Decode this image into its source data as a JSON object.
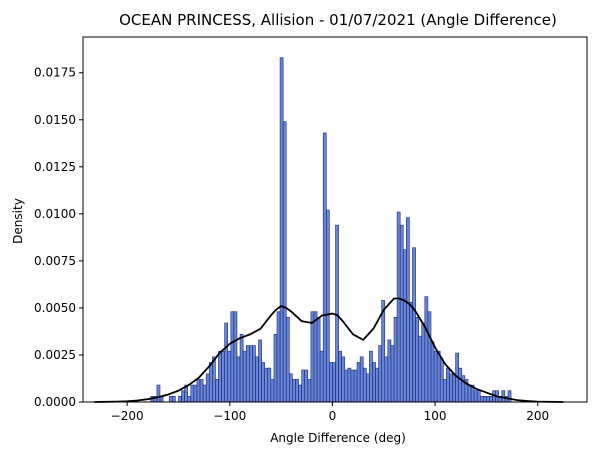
{
  "chart_data": {
    "type": "bar",
    "title": "OCEAN PRINCESS, Allision - 01/07/2021 (Angle Difference)",
    "xlabel": "Angle Difference (deg)",
    "ylabel": "Density",
    "xlim": [
      -243,
      248
    ],
    "ylim": [
      0,
      0.0194
    ],
    "xticks": [
      -200,
      -100,
      0,
      100,
      200
    ],
    "xtick_labels": [
      "−200",
      "−100",
      "0",
      "100",
      "200"
    ],
    "yticks": [
      0,
      0.0025,
      0.005,
      0.0075,
      0.01,
      0.0125,
      0.015,
      0.0175
    ],
    "ytick_labels": [
      "0.0000",
      "0.0025",
      "0.0050",
      "0.0075",
      "0.0100",
      "0.0125",
      "0.0150",
      "0.0175"
    ],
    "grid": false,
    "legend": "none",
    "colors": {
      "bar_fill": "#4a6fd4",
      "bar_edge": "#1f2d6b",
      "kde_line": "#000000"
    },
    "histogram": {
      "bin_width": 3,
      "bin_left_edges": [
        -177,
        -174,
        -171,
        -168,
        -165,
        -162,
        -159,
        -156,
        -153,
        -150,
        -147,
        -144,
        -141,
        -138,
        -135,
        -132,
        -129,
        -126,
        -123,
        -120,
        -117,
        -114,
        -111,
        -108,
        -105,
        -102,
        -99,
        -96,
        -93,
        -90,
        -87,
        -84,
        -81,
        -78,
        -75,
        -72,
        -69,
        -66,
        -63,
        -60,
        -57,
        -54,
        -51,
        -48,
        -45,
        -42,
        -39,
        -36,
        -33,
        -30,
        -27,
        -24,
        -21,
        -18,
        -15,
        -12,
        -9,
        -6,
        -3,
        0,
        3,
        6,
        9,
        12,
        15,
        18,
        21,
        24,
        27,
        30,
        33,
        36,
        39,
        42,
        45,
        48,
        51,
        54,
        57,
        60,
        63,
        66,
        69,
        72,
        75,
        78,
        81,
        84,
        87,
        90,
        93,
        96,
        99,
        102,
        105,
        108,
        111,
        114,
        117,
        120,
        123,
        126,
        129,
        132,
        135,
        138,
        141,
        144,
        147,
        150,
        153,
        156,
        159,
        162,
        165,
        168,
        171
      ],
      "values": [
        0.0003,
        0.0003,
        0.0009,
        0.0003,
        0,
        0,
        0.0003,
        0.0003,
        0,
        0.0003,
        0.0006,
        0.0009,
        0.0003,
        0.0009,
        0.0009,
        0.0012,
        0.0012,
        0.0009,
        0.0015,
        0.0021,
        0.0024,
        0.0012,
        0.0027,
        0.0027,
        0.0042,
        0.0027,
        0.0048,
        0.0048,
        0.0024,
        0.0036,
        0.0027,
        0.003,
        0.003,
        0.003,
        0.0024,
        0.0033,
        0.0021,
        0.0018,
        0.0018,
        0.0012,
        0.0036,
        0.0048,
        0.0183,
        0.0149,
        0.0045,
        0.0015,
        0.0012,
        0.0012,
        0.0009,
        0.0017,
        0.0017,
        0.0012,
        0.0048,
        0.0048,
        0.0045,
        0.0027,
        0.0143,
        0.0102,
        0.0021,
        0.0021,
        0.0094,
        0.0027,
        0.0024,
        0.0017,
        0.0018,
        0.0017,
        0.0017,
        0.0021,
        0.0024,
        0.0018,
        0.0015,
        0.0027,
        0.0021,
        0.0018,
        0.003,
        0.0054,
        0.0024,
        0.0033,
        0.003,
        0.0045,
        0.0101,
        0.0094,
        0.0081,
        0.0098,
        0.0053,
        0.0082,
        0.0045,
        0.0035,
        0.0042,
        0.0056,
        0.0048,
        0.0032,
        0.0027,
        0.0027,
        0.0023,
        0.0012,
        0.0018,
        0.0015,
        0.0015,
        0.0026,
        0.0018,
        0.0014,
        0.0012,
        0.0009,
        0.0009,
        0.0006,
        0.0006,
        0.0003,
        0.0003,
        0.0003,
        0.0003,
        0.0006,
        0.0006,
        0.0003,
        0.0006,
        0.0003,
        0.0006
      ]
    },
    "kde": {
      "x": [
        -232,
        -220,
        -210,
        -200,
        -190,
        -180,
        -170,
        -160,
        -150,
        -140,
        -130,
        -120,
        -110,
        -100,
        -90,
        -80,
        -70,
        -60,
        -55,
        -50,
        -45,
        -40,
        -30,
        -20,
        -10,
        0,
        5,
        10,
        20,
        30,
        40,
        50,
        60,
        65,
        70,
        75,
        80,
        90,
        100,
        110,
        120,
        130,
        140,
        150,
        160,
        170,
        180,
        190,
        200,
        210,
        225
      ],
      "y": [
        0,
        1e-05,
        2e-05,
        4e-05,
        8e-05,
        0.00015,
        0.00025,
        0.0004,
        0.0006,
        0.0009,
        0.0013,
        0.0019,
        0.0026,
        0.0031,
        0.0034,
        0.0036,
        0.0039,
        0.0046,
        0.0049,
        0.0051,
        0.005,
        0.0048,
        0.0043,
        0.0042,
        0.0046,
        0.0047,
        0.0046,
        0.0043,
        0.0036,
        0.0033,
        0.0039,
        0.0049,
        0.0055,
        0.0055,
        0.0054,
        0.0052,
        0.0049,
        0.004,
        0.0029,
        0.002,
        0.0014,
        0.001,
        0.0007,
        0.0005,
        0.0003,
        0.0002,
        0.0001,
        5e-05,
        2e-05,
        1e-05,
        0
      ]
    }
  }
}
